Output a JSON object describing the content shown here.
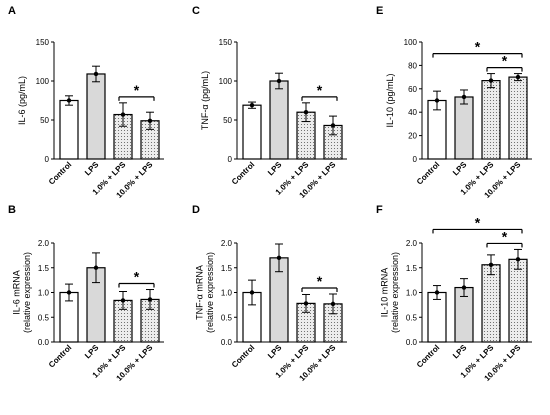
{
  "chart_data": [
    {
      "panel": "A",
      "type": "bar",
      "ylabel": [
        "IL-6 (pg/mL)"
      ],
      "categories": [
        "Control",
        "LPS",
        "1.0% + LPS",
        "10.0% + LPS"
      ],
      "values": [
        75,
        109,
        57,
        49
      ],
      "errors": [
        6,
        10,
        15,
        11
      ],
      "ylim": [
        0,
        150
      ],
      "yticks": [
        "0",
        "50",
        "100",
        "150"
      ],
      "significance": [
        {
          "from": 2,
          "to": 3,
          "label": "*"
        }
      ]
    },
    {
      "panel": "C",
      "type": "bar",
      "ylabel": [
        "TNF-α (pg/mL)"
      ],
      "categories": [
        "Control",
        "LPS",
        "1.0% + LPS",
        "10.0% + LPS"
      ],
      "values": [
        69,
        100,
        60,
        43
      ],
      "errors": [
        4,
        10,
        12,
        12
      ],
      "ylim": [
        0,
        150
      ],
      "yticks": [
        "0",
        "50",
        "100",
        "150"
      ],
      "significance": [
        {
          "from": 2,
          "to": 3,
          "label": "*"
        }
      ]
    },
    {
      "panel": "E",
      "type": "bar",
      "ylabel": [
        "IL-10 (pg/mL)"
      ],
      "categories": [
        "Control",
        "LPS",
        "1.0% + LPS",
        "10.0% + LPS"
      ],
      "values": [
        50,
        53,
        67,
        70
      ],
      "errors": [
        8,
        6,
        6,
        3
      ],
      "ylim": [
        0,
        100
      ],
      "yticks": [
        "0",
        "20",
        "40",
        "60",
        "80",
        "100"
      ],
      "significance": [
        {
          "from": 0,
          "to": 3,
          "label": "*"
        },
        {
          "from": 2,
          "to": 3,
          "label": "*"
        }
      ]
    },
    {
      "panel": "B",
      "type": "bar",
      "ylabel": [
        "IL-6 mRNA",
        "(relative expression)"
      ],
      "categories": [
        "Control",
        "LPS",
        "1.0% + LPS",
        "10.0% + LPS"
      ],
      "values": [
        1.0,
        1.5,
        0.84,
        0.86
      ],
      "errors": [
        0.17,
        0.3,
        0.18,
        0.2
      ],
      "ylim": [
        0,
        2.0
      ],
      "yticks": [
        "0.0",
        "0.5",
        "1.0",
        "1.5",
        "2.0"
      ],
      "significance": [
        {
          "from": 2,
          "to": 3,
          "label": "*"
        }
      ]
    },
    {
      "panel": "D",
      "type": "bar",
      "ylabel": [
        "TNF-α mRNA",
        "(relative expression)"
      ],
      "categories": [
        "Control",
        "LPS",
        "1.0% + LPS",
        "10.0% + LPS"
      ],
      "values": [
        1.0,
        1.7,
        0.78,
        0.77
      ],
      "errors": [
        0.25,
        0.28,
        0.18,
        0.2
      ],
      "ylim": [
        0,
        2.0
      ],
      "yticks": [
        "0.0",
        "0.5",
        "1.0",
        "1.5",
        "2.0"
      ],
      "significance": [
        {
          "from": 2,
          "to": 3,
          "label": "*"
        }
      ]
    },
    {
      "panel": "F",
      "type": "bar",
      "ylabel": [
        "IL-10 mRNA",
        "(relative expression)"
      ],
      "categories": [
        "Control",
        "LPS",
        "1.0% + LPS",
        "10.0% + LPS"
      ],
      "values": [
        1.0,
        1.1,
        1.56,
        1.67
      ],
      "errors": [
        0.14,
        0.18,
        0.2,
        0.2
      ],
      "ylim": [
        0,
        2.0
      ],
      "yticks": [
        "0.0",
        "0.5",
        "1.0",
        "1.5",
        "2.0"
      ],
      "significance": [
        {
          "from": 0,
          "to": 3,
          "label": "*"
        },
        {
          "from": 2,
          "to": 3,
          "label": "*"
        }
      ]
    }
  ],
  "colors": {
    "control_fill": "#ffffff",
    "lps_fill": "#d9d9d9",
    "treated_fill": "#ececec",
    "stroke": "#000000"
  }
}
